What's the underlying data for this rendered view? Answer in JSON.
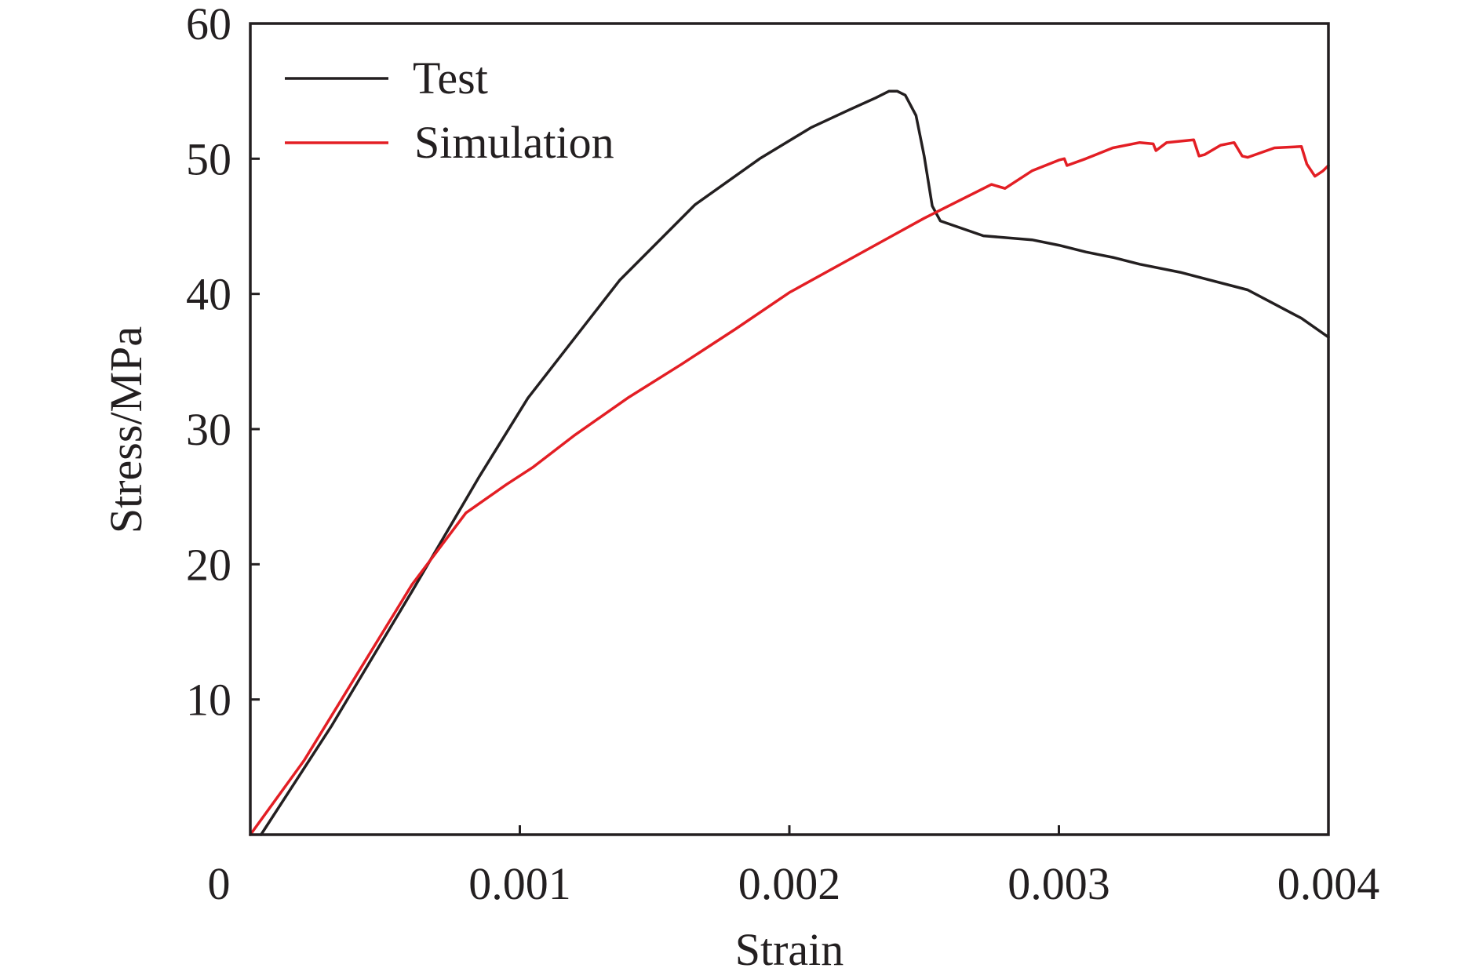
{
  "chart_data": {
    "type": "line",
    "title": "",
    "xlabel": "Strain",
    "ylabel": "Stress/MPa",
    "xlim": [
      0,
      0.004
    ],
    "ylim": [
      0,
      60
    ],
    "x_ticks": [
      0,
      0.001,
      0.002,
      0.003,
      0.004
    ],
    "x_tick_labels": [
      "0",
      "0.001",
      "0.002",
      "0.003",
      "0.004"
    ],
    "y_ticks": [
      10,
      20,
      30,
      40,
      50,
      60
    ],
    "y_tick_labels": [
      "10",
      "20",
      "30",
      "40",
      "50",
      "60"
    ],
    "grid": false,
    "legend_position": "top-left",
    "series": [
      {
        "name": "Test",
        "color": "#231f20",
        "x": [
          4e-05,
          0.0003,
          0.0006,
          0.00085,
          0.00103,
          0.00137,
          0.00165,
          0.00189,
          0.00208,
          0.00222,
          0.00232,
          0.00237,
          0.0024,
          0.00243,
          0.00247,
          0.0025,
          0.00253,
          0.00256,
          0.00272,
          0.0029,
          0.003,
          0.0031,
          0.0032,
          0.0033,
          0.00345,
          0.0037,
          0.0039,
          0.004
        ],
        "y": [
          0,
          8.0,
          18.0,
          26.5,
          32.3,
          41.0,
          46.6,
          50.0,
          52.3,
          53.6,
          54.5,
          55.0,
          55.0,
          54.7,
          53.2,
          50.2,
          46.5,
          45.4,
          44.3,
          44.0,
          43.6,
          43.1,
          42.7,
          42.2,
          41.6,
          40.3,
          38.2,
          36.8
        ]
      },
      {
        "name": "Simulation",
        "color": "#e31e24",
        "x": [
          0.0,
          0.0002,
          0.0004,
          0.0006,
          0.0008,
          0.00095,
          0.00105,
          0.0012,
          0.0014,
          0.0016,
          0.0018,
          0.002,
          0.0022,
          0.0024,
          0.0025,
          0.0026,
          0.0027,
          0.00275,
          0.0028,
          0.0029,
          0.003,
          0.00302,
          0.00303,
          0.0031,
          0.0032,
          0.0033,
          0.00335,
          0.00336,
          0.0034,
          0.0035,
          0.00352,
          0.00354,
          0.0036,
          0.00365,
          0.00368,
          0.0037,
          0.0038,
          0.0039,
          0.00392,
          0.00395,
          0.00398,
          0.004
        ],
        "y": [
          0,
          5.5,
          12.0,
          18.5,
          23.8,
          25.9,
          27.2,
          29.5,
          32.3,
          34.8,
          37.4,
          40.1,
          42.3,
          44.5,
          45.6,
          46.6,
          47.6,
          48.1,
          47.8,
          49.1,
          49.9,
          50.0,
          49.5,
          50.0,
          50.8,
          51.2,
          51.1,
          50.6,
          51.2,
          51.4,
          50.2,
          50.3,
          51.0,
          51.2,
          50.2,
          50.1,
          50.8,
          50.9,
          49.6,
          48.7,
          49.1,
          49.5
        ]
      }
    ]
  }
}
